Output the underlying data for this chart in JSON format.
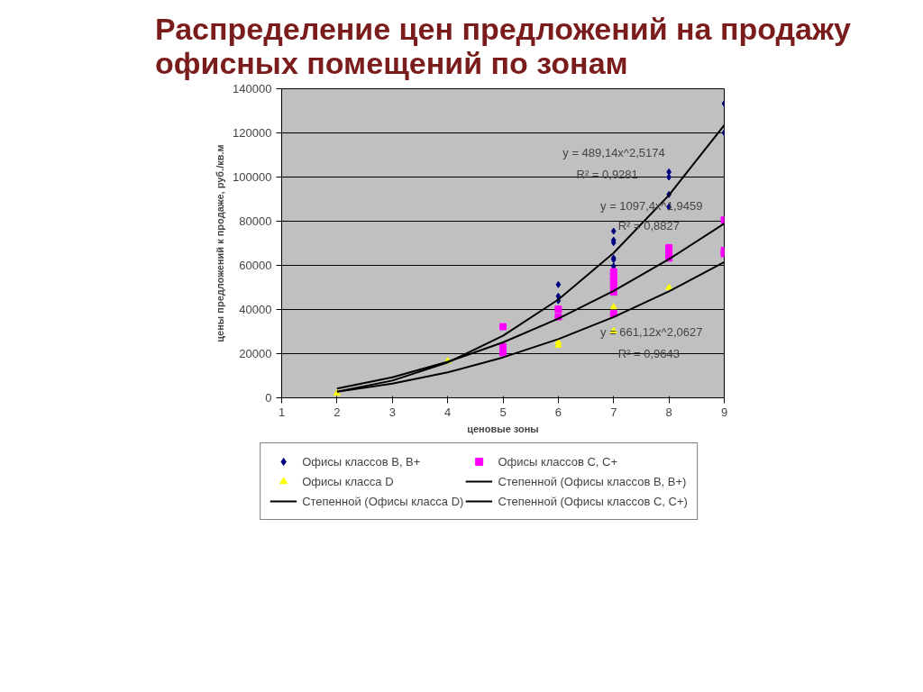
{
  "chart_data": {
    "type": "scatter",
    "title": "Распределение цен предложений на продажу офисных помещений по зонам",
    "xlabel": "ценовые зоны",
    "ylabel": "цены предложений к продаже, руб./кв.м",
    "xlim": [
      1,
      9
    ],
    "xticks": [
      1,
      2,
      3,
      4,
      5,
      6,
      7,
      8,
      9
    ],
    "ylim": [
      0,
      140000
    ],
    "yticks": [
      0,
      20000,
      40000,
      60000,
      80000,
      100000,
      120000,
      140000
    ],
    "grid": "y",
    "legend": "bottom",
    "series": [
      {
        "name": "Офисы классов B, B+",
        "color": "#000080",
        "marker": "diamond",
        "x": [
          6,
          6,
          6,
          7,
          7,
          7,
          7,
          7,
          7,
          8,
          8,
          8,
          8,
          9,
          9
        ],
        "values": [
          51300,
          46000,
          44000,
          75500,
          71400,
          70300,
          63300,
          62600,
          59600,
          102300,
          100000,
          92100,
          86400,
          133300,
          120100
        ]
      },
      {
        "name": "Офисы классов C, C+",
        "color": "#ff00ff",
        "marker": "square",
        "x": [
          5,
          5,
          5,
          6,
          6,
          7,
          7,
          7,
          7,
          7,
          7,
          8,
          8,
          8,
          9,
          9,
          9
        ],
        "values": [
          32200,
          23100,
          20400,
          40100,
          36700,
          57100,
          55100,
          53100,
          51000,
          47900,
          38100,
          68000,
          65300,
          63300,
          80500,
          66700,
          65300
        ]
      },
      {
        "name": "Офисы класса D",
        "color": "#ffff00",
        "marker": "triangle",
        "x": [
          2,
          4,
          6,
          6,
          7,
          7,
          8
        ],
        "values": [
          2000,
          16600,
          25200,
          23800,
          41100,
          30300,
          49900
        ]
      },
      {
        "name": "Степенной (Офисы классов B, B+)",
        "type": "line",
        "color": "#000000",
        "marker": "none",
        "x": [
          2,
          3,
          4,
          5,
          6,
          7,
          8,
          9
        ],
        "values": [
          2800,
          7800,
          16000,
          28100,
          44500,
          65600,
          91800,
          123500
        ]
      },
      {
        "name": "Степенной (Офисы класса D)",
        "type": "line",
        "color": "#000000",
        "marker": "none",
        "x": [
          2,
          3,
          4,
          5,
          6,
          7,
          8,
          9
        ],
        "values": [
          2800,
          6400,
          11500,
          18300,
          26600,
          36600,
          48200,
          61500
        ]
      },
      {
        "name": "Степенной (Офисы классов C, C+)",
        "type": "line",
        "color": "#000000",
        "marker": "none",
        "x": [
          2,
          3,
          4,
          5,
          6,
          7,
          8,
          9
        ],
        "values": [
          4200,
          9300,
          16300,
          25100,
          35900,
          48400,
          62800,
          78900
        ]
      }
    ],
    "annotations": [
      "y = 489,14x^2,5174",
      "R² = 0,9281",
      "y = 1097,4x^1,9459",
      "R² = 0,8827",
      "y = 661,12x^2,0627",
      "R² = 0,9643"
    ]
  }
}
